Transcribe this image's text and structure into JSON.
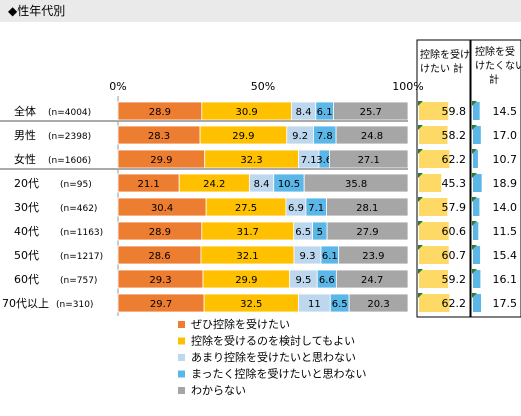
{
  "header": {
    "title": "◆性年代別"
  },
  "colors": {
    "cat1": "#ED7D31",
    "cat2": "#FFC000",
    "cat3": "#BDD7EE",
    "cat4": "#5BB7E8",
    "cat5": "#A6A6A6",
    "sum_a": "#FFD966",
    "sum_b": "#5BB7E8",
    "corner": "#2E7D32"
  },
  "chart_data": {
    "type": "bar",
    "orientation": "horizontal",
    "stacked": true,
    "xlim": [
      0,
      100
    ],
    "x_ticks": [
      "0%",
      "50%",
      "100%"
    ],
    "categories": [
      {
        "label": "全体",
        "n": "(n=4004)"
      },
      {
        "label": "男性",
        "n": "(n=2398)"
      },
      {
        "label": "女性",
        "n": "(n=1606)"
      },
      {
        "label": "20代",
        "n": "(n=95)"
      },
      {
        "label": "30代",
        "n": "(n=462)"
      },
      {
        "label": "40代",
        "n": "(n=1163)"
      },
      {
        "label": "50代",
        "n": "(n=1217)"
      },
      {
        "label": "60代",
        "n": "(n=757)"
      },
      {
        "label": "70代以上",
        "n": "(n=310)"
      }
    ],
    "series": [
      {
        "name": "ぜひ控除を受けたい",
        "values": [
          28.9,
          28.3,
          29.9,
          21.1,
          30.4,
          28.9,
          28.6,
          29.3,
          29.7
        ]
      },
      {
        "name": "控除を受けるのを検討してもよい",
        "values": [
          30.9,
          29.9,
          32.3,
          24.2,
          27.5,
          31.7,
          32.1,
          29.9,
          32.5
        ]
      },
      {
        "name": "あまり控除を受けたいと思わない",
        "values": [
          8.4,
          9.2,
          7.1,
          8.4,
          6.9,
          6.5,
          9.3,
          9.5,
          11
        ]
      },
      {
        "name": "まったく控除を受けたいと思わない",
        "values": [
          6.1,
          7.8,
          3.6,
          10.5,
          7.1,
          5,
          6.1,
          6.6,
          6.5
        ]
      },
      {
        "name": "わからない",
        "values": [
          25.7,
          24.8,
          27.1,
          35.8,
          28.1,
          27.9,
          23.9,
          24.7,
          20.3
        ]
      }
    ],
    "summary_columns": [
      {
        "header": "控除を受けたい 計",
        "values": [
          59.8,
          58.2,
          62.2,
          45.3,
          57.9,
          60.6,
          60.7,
          59.2,
          62.2
        ]
      },
      {
        "header": "控除を受けたくない計",
        "values": [
          14.5,
          17.0,
          10.7,
          18.9,
          14.0,
          11.5,
          15.4,
          16.1,
          17.5
        ]
      }
    ],
    "legend_position": "bottom"
  }
}
